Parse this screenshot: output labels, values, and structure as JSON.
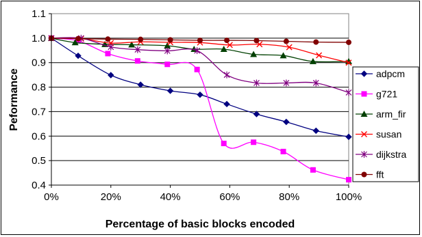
{
  "chart_data": {
    "type": "line",
    "title": "",
    "xlabel": "Percentage of basic blocks encoded",
    "ylabel": "Peformance",
    "xlim": [
      0,
      100
    ],
    "ylim": [
      0.4,
      1.1
    ],
    "x_ticks": [
      "0%",
      "20%",
      "40%",
      "60%",
      "80%",
      "100%"
    ],
    "y_ticks": [
      "0.4",
      "0.5",
      "0.6",
      "0.7",
      "0.8",
      "0.9",
      "1.0",
      "1.1"
    ],
    "grid": "horizontal",
    "legend_position": "right",
    "series": [
      {
        "name": "adpcm",
        "color": "#000080",
        "marker": "diamond",
        "x": [
          0,
          9,
          20,
          30,
          40,
          50,
          59,
          69,
          79,
          89,
          100
        ],
        "values": [
          1.0,
          0.928,
          0.849,
          0.81,
          0.785,
          0.769,
          0.731,
          0.69,
          0.658,
          0.622,
          0.597
        ]
      },
      {
        "name": "g721",
        "color": "#ff00ff",
        "marker": "square",
        "x": [
          0,
          9,
          19,
          29,
          39,
          49,
          58,
          68,
          78,
          88,
          100
        ],
        "values": [
          1.0,
          0.989,
          0.937,
          0.907,
          0.893,
          0.872,
          0.57,
          0.575,
          0.537,
          0.462,
          0.422
        ]
      },
      {
        "name": "arm_fir",
        "color": "#004000",
        "marker": "triangle",
        "x": [
          0,
          8,
          18,
          27,
          39,
          48,
          58,
          68,
          78,
          88,
          100
        ],
        "values": [
          1.0,
          0.982,
          0.975,
          0.973,
          0.969,
          0.955,
          0.955,
          0.934,
          0.929,
          0.905,
          0.905
        ]
      },
      {
        "name": "susan",
        "color": "#ff0000",
        "marker": "x",
        "x": [
          0,
          10,
          20,
          30,
          40,
          50,
          60,
          70,
          80,
          90,
          100
        ],
        "values": [
          1.0,
          0.998,
          0.98,
          0.985,
          0.983,
          0.982,
          0.972,
          0.975,
          0.963,
          0.93,
          0.9
        ]
      },
      {
        "name": "dijkstra",
        "color": "#800080",
        "marker": "star",
        "x": [
          0,
          10,
          20,
          29,
          39,
          49,
          59,
          69,
          79,
          89,
          100
        ],
        "values": [
          1.0,
          1.0,
          0.964,
          0.953,
          0.948,
          0.949,
          0.85,
          0.817,
          0.817,
          0.817,
          0.778
        ]
      },
      {
        "name": "fft",
        "color": "#800000",
        "marker": "circle",
        "x": [
          0,
          9,
          19,
          30,
          40,
          50,
          59,
          69,
          79,
          89,
          100
        ],
        "values": [
          1.0,
          0.998,
          0.996,
          0.995,
          0.993,
          0.991,
          0.991,
          0.99,
          0.987,
          0.984,
          0.983
        ]
      }
    ]
  }
}
